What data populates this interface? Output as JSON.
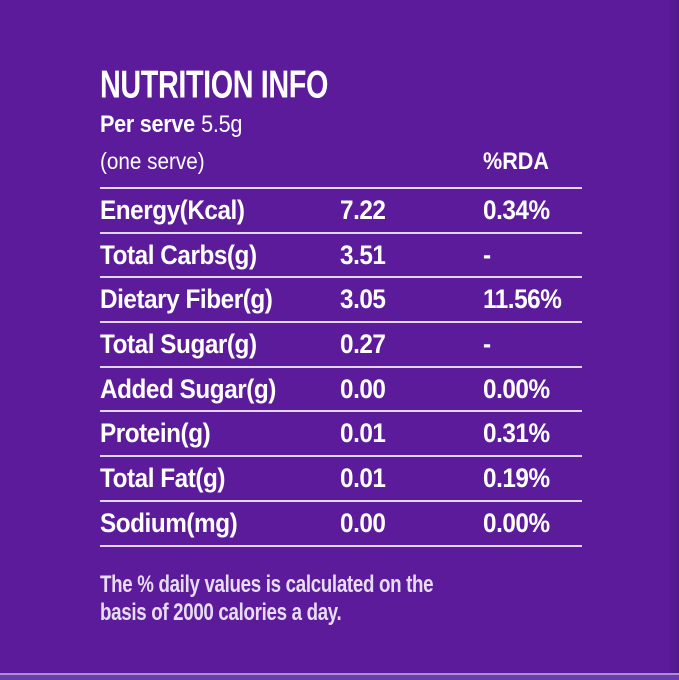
{
  "panel": {
    "title": "NUTRITION INFO",
    "serving": {
      "label": "Per serve",
      "value": "5.5g"
    },
    "header": {
      "serve_col": "(one serve)",
      "rda_col": "%RDA"
    },
    "rows": [
      {
        "label": "Energy(Kcal)",
        "value": "7.22",
        "rda": "0.34%"
      },
      {
        "label": "Total Carbs(g)",
        "value": "3.51",
        "rda": "-"
      },
      {
        "label": "Dietary Fiber(g)",
        "value": "3.05",
        "rda": "11.56%"
      },
      {
        "label": "Total Sugar(g)",
        "value": "0.27",
        "rda": "-"
      },
      {
        "label": "Added Sugar(g)",
        "value": "0.00",
        "rda": "0.00%"
      },
      {
        "label": "Protein(g)",
        "value": "0.01",
        "rda": "0.31%"
      },
      {
        "label": "Total Fat(g)",
        "value": "0.01",
        "rda": "0.19%"
      },
      {
        "label": "Sodium(mg)",
        "value": "0.00",
        "rda": "0.00%"
      }
    ],
    "footnote": {
      "line1": "The % daily values is calculated on the",
      "line2": "basis of 2000 calories a day."
    },
    "colors": {
      "background": "#5b1b9a",
      "divider": "#e2d6f3",
      "text": "#ffffff",
      "footnote_text": "#e7dcf4",
      "bottom_band": "#6b3ba7",
      "bottom_band_line": "#a88fd4"
    }
  }
}
